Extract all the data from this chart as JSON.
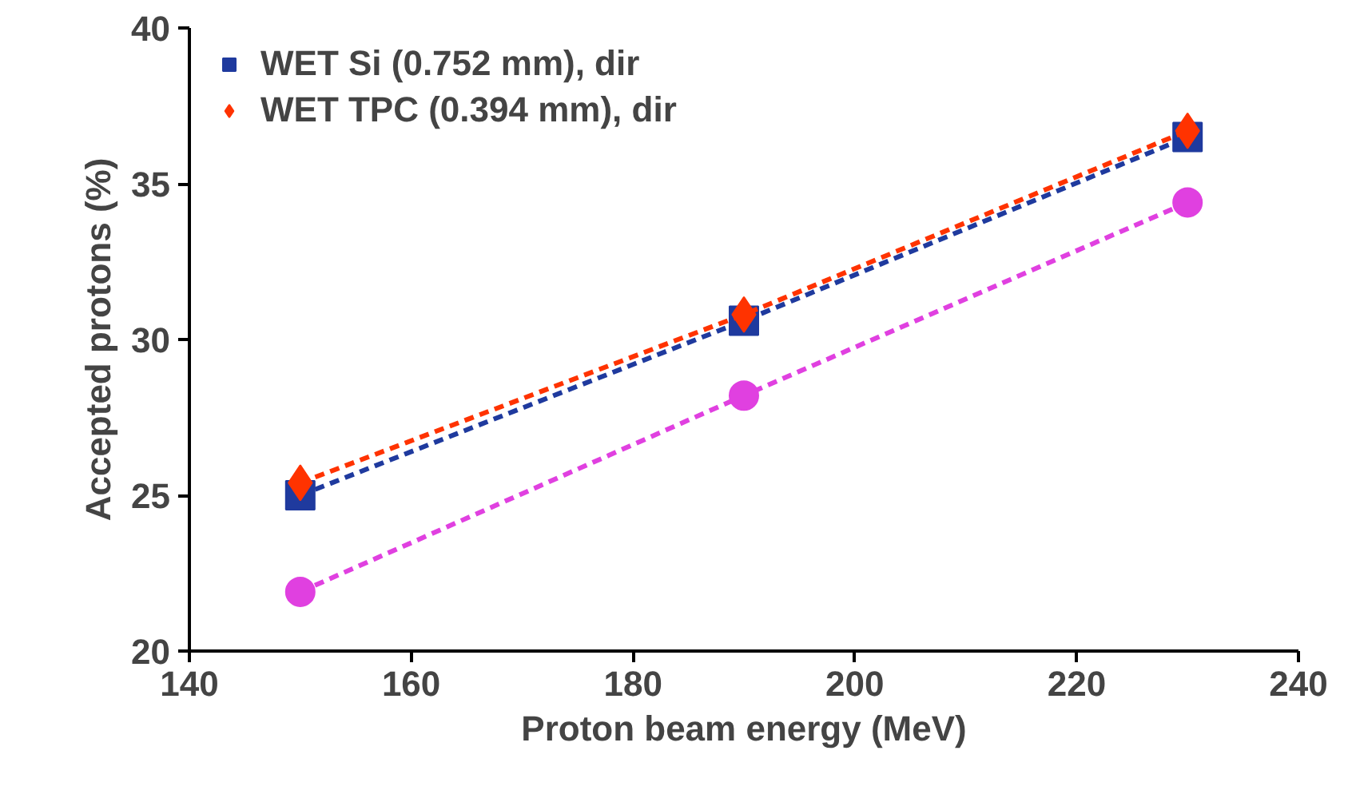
{
  "chart_data": {
    "type": "line",
    "xlabel": "Proton beam energy (MeV)",
    "ylabel": "Accepted protons (%)",
    "x": [
      150,
      190,
      230
    ],
    "series": [
      {
        "name": "WET Si (0.752 mm), dir",
        "color": "#1f3a9e",
        "values": [
          25.0,
          30.6,
          36.5
        ],
        "marker": "square"
      },
      {
        "name": "WET TPC (0.394 mm), dir",
        "color": "#ff3300",
        "values": [
          25.4,
          30.8,
          36.7
        ],
        "marker": "diamond"
      },
      {
        "color": "#e040e0",
        "values": [
          21.9,
          28.2,
          34.4
        ],
        "marker": "circle"
      }
    ],
    "xlim": [
      140,
      240
    ],
    "xticks": [
      140,
      160,
      180,
      200,
      220,
      240
    ],
    "ylim": [
      20,
      40
    ],
    "yticks": [
      20,
      25,
      30,
      35,
      40
    ],
    "line_style": "dashed",
    "grid": false,
    "legend": "top left"
  }
}
